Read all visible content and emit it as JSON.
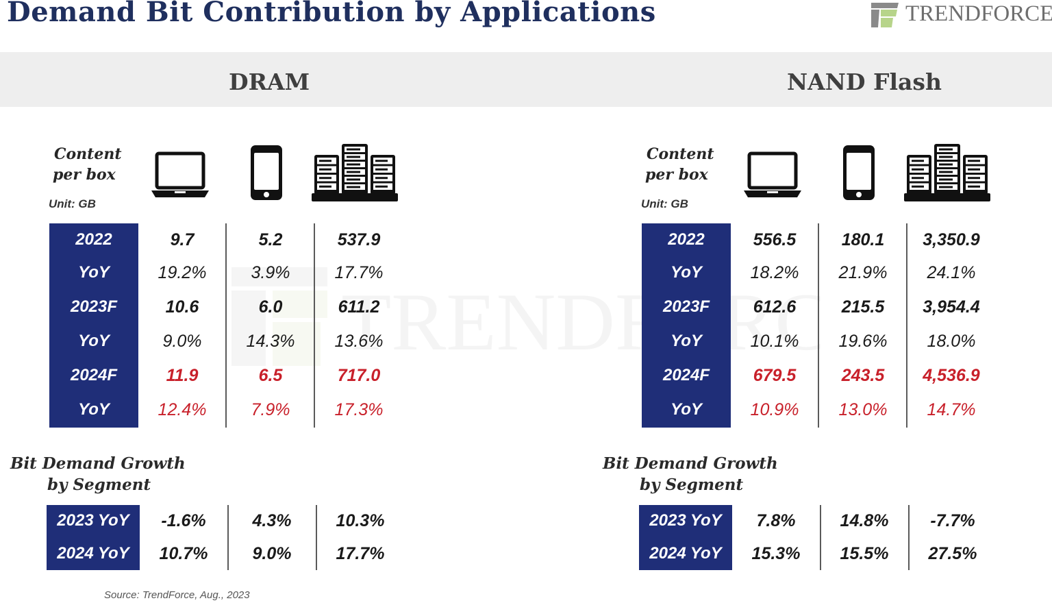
{
  "header": {
    "title": "Demand Bit Contribution by Applications",
    "logo_text": "TRENDFORCE"
  },
  "colors": {
    "navy": "#1f2e78",
    "red": "#c8202a",
    "title": "#1f2f5e"
  },
  "icons": [
    "laptop-icon",
    "smartphone-icon",
    "server-icon"
  ],
  "dram": {
    "title": "DRAM",
    "content_label_1": "Content",
    "content_label_2": "per box",
    "unit": "Unit: GB",
    "rows": [
      {
        "label": "2022",
        "v": [
          "9.7",
          "5.2",
          "537.9"
        ]
      },
      {
        "label": "YoY",
        "v": [
          "19.2%",
          "3.9%",
          "17.7%"
        ]
      },
      {
        "label": "2023F",
        "v": [
          "10.6",
          "6.0",
          "611.2"
        ]
      },
      {
        "label": "YoY",
        "v": [
          "9.0%",
          "14.3%",
          "13.6%"
        ]
      },
      {
        "label": "2024F",
        "v": [
          "11.9",
          "6.5",
          "717.0"
        ]
      },
      {
        "label": "YoY",
        "v": [
          "12.4%",
          "7.9%",
          "17.3%"
        ]
      }
    ],
    "growth_label_1": "Bit Demand Growth",
    "growth_label_2": "by Segment",
    "growth": [
      {
        "label": "2023 YoY",
        "v": [
          "-1.6%",
          "4.3%",
          "10.3%"
        ]
      },
      {
        "label": "2024 YoY",
        "v": [
          "10.7%",
          "9.0%",
          "17.7%"
        ]
      }
    ]
  },
  "nand": {
    "title": "NAND Flash",
    "content_label_1": "Content",
    "content_label_2": "per box",
    "unit": "Unit: GB",
    "rows": [
      {
        "label": "2022",
        "v": [
          "556.5",
          "180.1",
          "3,350.9"
        ]
      },
      {
        "label": "YoY",
        "v": [
          "18.2%",
          "21.9%",
          "24.1%"
        ]
      },
      {
        "label": "2023F",
        "v": [
          "612.6",
          "215.5",
          "3,954.4"
        ]
      },
      {
        "label": "YoY",
        "v": [
          "10.1%",
          "19.6%",
          "18.0%"
        ]
      },
      {
        "label": "2024F",
        "v": [
          "679.5",
          "243.5",
          "4,536.9"
        ]
      },
      {
        "label": "YoY",
        "v": [
          "10.9%",
          "13.0%",
          "14.7%"
        ]
      }
    ],
    "growth_label_1": "Bit Demand Growth",
    "growth_label_2": "by Segment",
    "growth": [
      {
        "label": "2023 YoY",
        "v": [
          "7.8%",
          "14.8%",
          "-7.7%"
        ]
      },
      {
        "label": "2024 YoY",
        "v": [
          "15.3%",
          "15.5%",
          "27.5%"
        ]
      }
    ]
  },
  "source": "Source: TrendForce, Aug., 2023"
}
